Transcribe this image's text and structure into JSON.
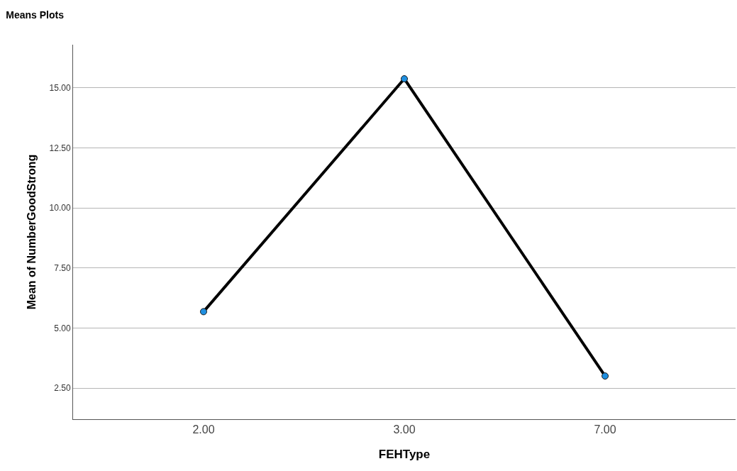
{
  "chart_data": {
    "type": "line",
    "title": "Means Plots",
    "xlabel": "FEHType",
    "ylabel": "Mean of NumberGoodStrong",
    "categories": [
      "2.00",
      "3.00",
      "7.00"
    ],
    "series": [
      {
        "color": "#000000",
        "values": [
          5.68,
          15.38,
          3.0
        ]
      }
    ],
    "marker": "circle",
    "line_style": "solid",
    "ylim": [
      1.2,
      16.8
    ],
    "yticks": [
      {
        "value": 2.5,
        "label": "2.50"
      },
      {
        "value": 5,
        "label": "5.00"
      },
      {
        "value": 7.5,
        "label": "7.50"
      },
      {
        "value": 10,
        "label": "10.00"
      },
      {
        "value": 12.5,
        "label": "12.50"
      },
      {
        "value": 15,
        "label": "15.00"
      }
    ],
    "grid": "y"
  }
}
